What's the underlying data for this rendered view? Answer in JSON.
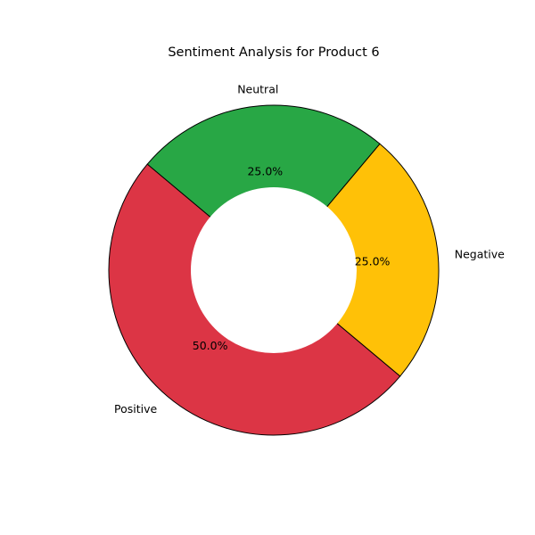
{
  "chart_data": {
    "type": "pie",
    "donut": true,
    "title": "Sentiment Analysis for Product 6",
    "labels": [
      "Positive",
      "Negative",
      "Neutral"
    ],
    "values": [
      50.0,
      25.0,
      25.0
    ],
    "percent_labels": [
      "50.0%",
      "25.0%",
      "25.0%"
    ],
    "colors": [
      "#dc3545",
      "#ffc107",
      "#28a745"
    ],
    "start_angle": 140,
    "direction": "counterclockwise",
    "edge_color": "#000000",
    "legend": "none"
  }
}
